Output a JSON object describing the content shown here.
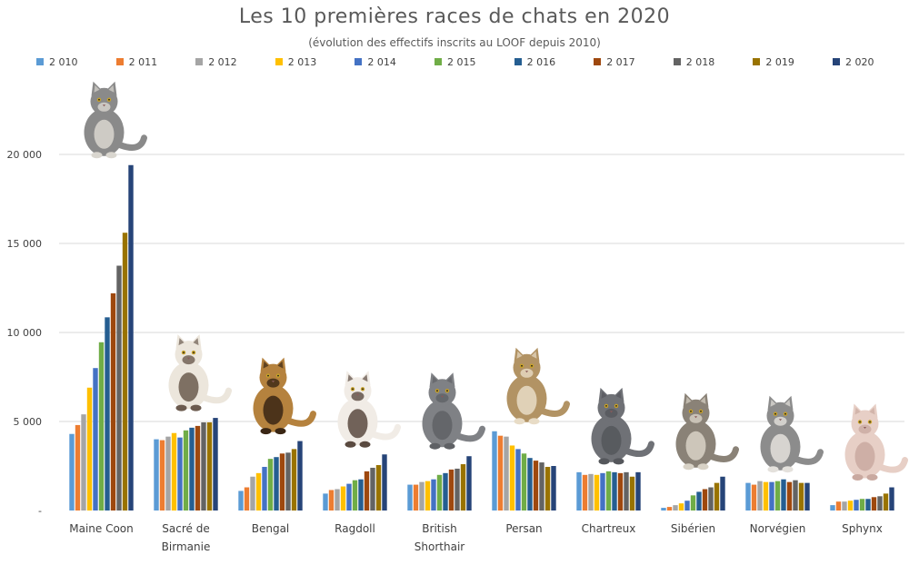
{
  "chart_data": {
    "type": "bar",
    "title": "Les 10 premières races de chats en 2020",
    "subtitle": "(évolution des effectifs inscrits au LOOF depuis 2010)",
    "categories": [
      "Maine Coon",
      "Sacré de Birmanie",
      "Bengal",
      "Ragdoll",
      "British Shorthair",
      "Persan",
      "Chartreux",
      "Sibérien",
      "Norvégien",
      "Sphynx"
    ],
    "category_lines": [
      [
        "Maine Coon"
      ],
      [
        "Sacré de",
        "Birmanie"
      ],
      [
        "Bengal"
      ],
      [
        "Ragdoll"
      ],
      [
        "British",
        "Shorthair"
      ],
      [
        "Persan"
      ],
      [
        "Chartreux"
      ],
      [
        "Sibérien"
      ],
      [
        "Norvégien"
      ],
      [
        "Sphynx"
      ]
    ],
    "series": [
      {
        "name": "2 010",
        "color": "#5B9BD5",
        "values": [
          4300,
          4000,
          1100,
          950,
          1450,
          4450,
          2150,
          150,
          1550,
          300
        ]
      },
      {
        "name": "2 011",
        "color": "#ED7D31",
        "values": [
          4800,
          3950,
          1300,
          1150,
          1450,
          4200,
          2000,
          200,
          1450,
          500
        ]
      },
      {
        "name": "2 012",
        "color": "#A5A5A5",
        "values": [
          5400,
          4150,
          1900,
          1200,
          1600,
          4150,
          2050,
          300,
          1650,
          500
        ]
      },
      {
        "name": "2 013",
        "color": "#FFC000",
        "values": [
          6900,
          4350,
          2100,
          1350,
          1650,
          3650,
          2000,
          400,
          1600,
          550
        ]
      },
      {
        "name": "2 014",
        "color": "#4472C4",
        "values": [
          8000,
          4100,
          2450,
          1500,
          1750,
          3450,
          2100,
          550,
          1600,
          600
        ]
      },
      {
        "name": "2 015",
        "color": "#70AD47",
        "values": [
          9450,
          4500,
          2900,
          1700,
          2000,
          3200,
          2200,
          850,
          1650,
          650
        ]
      },
      {
        "name": "2 016",
        "color": "#255E91",
        "values": [
          10850,
          4650,
          3000,
          1750,
          2100,
          2950,
          2150,
          1050,
          1750,
          650
        ]
      },
      {
        "name": "2 017",
        "color": "#9E480E",
        "values": [
          12200,
          4750,
          3200,
          2200,
          2300,
          2800,
          2100,
          1200,
          1600,
          750
        ]
      },
      {
        "name": "2 018",
        "color": "#636363",
        "values": [
          13750,
          4950,
          3250,
          2400,
          2350,
          2700,
          2150,
          1300,
          1700,
          800
        ]
      },
      {
        "name": "2 019",
        "color": "#997300",
        "values": [
          15600,
          4950,
          3450,
          2550,
          2600,
          2450,
          1900,
          1550,
          1550,
          950
        ]
      },
      {
        "name": "2 020",
        "color": "#264478",
        "values": [
          19400,
          5200,
          3900,
          3150,
          3050,
          2500,
          2150,
          1900,
          1550,
          1300
        ]
      }
    ],
    "y_ticks": [
      {
        "value": 0,
        "label": "-"
      },
      {
        "value": 5000,
        "label": "5 000"
      },
      {
        "value": 10000,
        "label": "10 000"
      },
      {
        "value": 15000,
        "label": "15 000"
      },
      {
        "value": 20000,
        "label": "20 000"
      }
    ],
    "ylim": [
      0,
      20000
    ],
    "xlabel": "",
    "ylabel": "",
    "grid": true,
    "legend_position": "top",
    "photos": [
      {
        "breed": "maine-coon",
        "icon": "maine-coon-cat-photo",
        "fur": "#8a8a8a",
        "accent": "#d9d6cf"
      },
      {
        "breed": "sacre-de-birmanie",
        "icon": "birman-cat-photo",
        "fur": "#ece6dc",
        "accent": "#6b5a4e"
      },
      {
        "breed": "bengal",
        "icon": "bengal-cat-photo",
        "fur": "#b5823e",
        "accent": "#3a2614"
      },
      {
        "breed": "ragdoll",
        "icon": "ragdoll-cat-photo",
        "fur": "#f1ece6",
        "accent": "#5a4a40"
      },
      {
        "breed": "british-shorthair",
        "icon": "british-shorthair-cat-photo",
        "fur": "#7f8185",
        "accent": "#5f6165"
      },
      {
        "breed": "persan",
        "icon": "persian-cat-photo",
        "fur": "#b29364",
        "accent": "#e8dcc6"
      },
      {
        "breed": "chartreux",
        "icon": "chartreux-cat-photo",
        "fur": "#6f7176",
        "accent": "#55575c"
      },
      {
        "breed": "siberien",
        "icon": "siberian-cat-photo",
        "fur": "#8a8277",
        "accent": "#d8d2c6"
      },
      {
        "breed": "norvegien",
        "icon": "norwegian-cat-photo",
        "fur": "#8c8c8c",
        "accent": "#e4e1dc"
      },
      {
        "breed": "sphynx",
        "icon": "sphynx-cat-photo",
        "fur": "#e7cfc6",
        "accent": "#c9a9a0"
      }
    ]
  }
}
